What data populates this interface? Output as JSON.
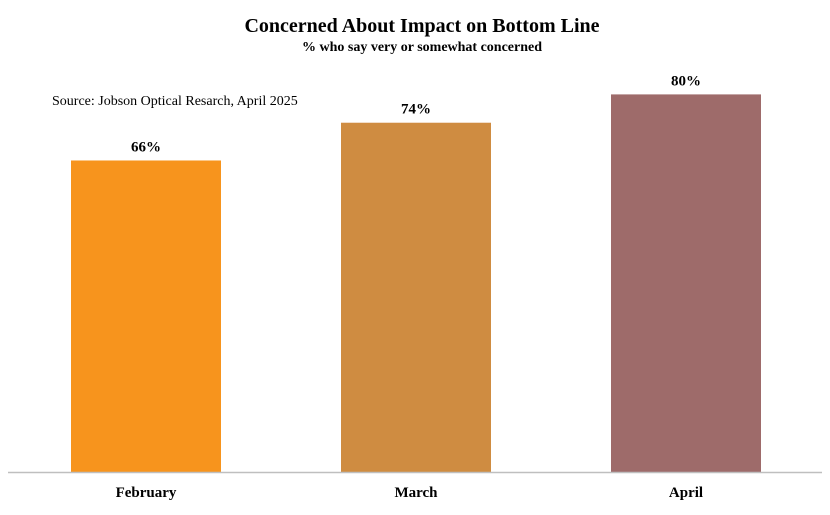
{
  "chart_data": {
    "type": "bar",
    "title": "Concerned About Impact on Bottom Line",
    "subtitle": "% who say very or somewhat concerned",
    "source": "Source: Jobson Optical Resarch, April 2025",
    "categories": [
      "February",
      "March",
      "April"
    ],
    "values": [
      66,
      74,
      80
    ],
    "value_labels": [
      "66%",
      "74%",
      "80%"
    ],
    "colors": [
      "#f7941d",
      "#cf8c41",
      "#9e6b6a"
    ],
    "axis_color": "#bfbfbf",
    "ylim": [
      0,
      100
    ],
    "grid": false,
    "legend": "none",
    "xlabel": "",
    "ylabel": ""
  }
}
